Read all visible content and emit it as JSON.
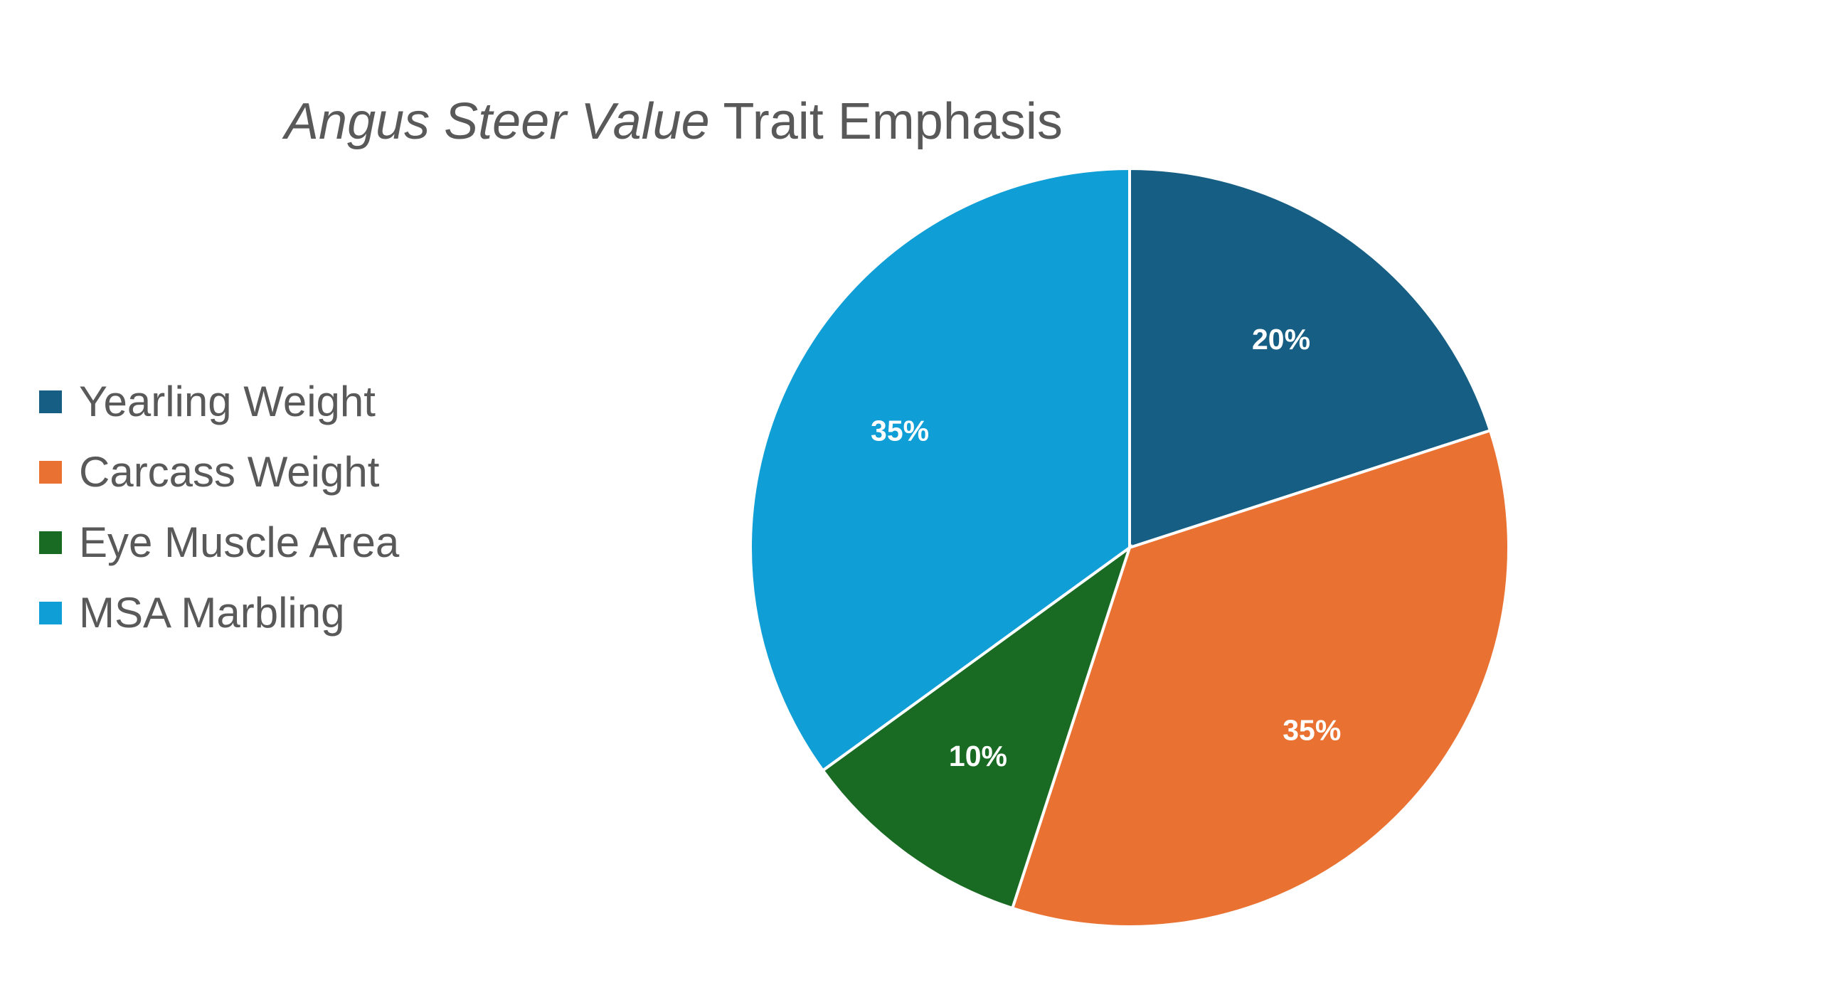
{
  "chart_data": {
    "type": "pie",
    "title_italic": "Angus Steer Value",
    "title_rest": " Trait Emphasis",
    "legend_placement": "left",
    "categories": [
      "Yearling Weight",
      "Carcass Weight",
      "Eye Muscle Area",
      "MSA Marbling"
    ],
    "values": [
      20,
      35,
      10,
      35
    ],
    "data_labels": [
      "20%",
      "35%",
      "10%",
      "35%"
    ],
    "colors": [
      "#165E83",
      "#E97132",
      "#196B24",
      "#0F9ED5"
    ]
  }
}
